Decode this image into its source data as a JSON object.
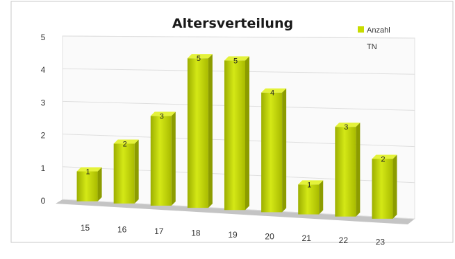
{
  "chart_data": {
    "type": "bar",
    "title": "Altersverteilung",
    "categories": [
      "15",
      "16",
      "17",
      "18",
      "19",
      "20",
      "21",
      "22",
      "23"
    ],
    "series": [
      {
        "name": "Anzahl TN",
        "values": [
          1,
          2,
          3,
          5,
          5,
          4,
          1,
          3,
          2
        ]
      }
    ],
    "yticks": [
      "0",
      "1",
      "2",
      "3",
      "4",
      "5"
    ],
    "ylim": [
      0,
      5
    ],
    "grid": true,
    "legend_position": "top-right",
    "bar_color": "#c8dc00",
    "legend_lines": [
      "Anzahl",
      "TN"
    ]
  }
}
